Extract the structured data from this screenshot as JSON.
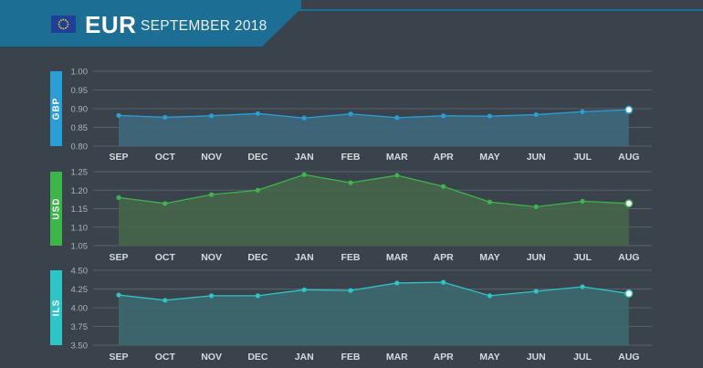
{
  "header": {
    "currency": "EUR",
    "period": "SEPTEMBER 2018",
    "flag_icon": "eu-flag-icon",
    "banner_color": "#1c6e94"
  },
  "chart_data": [
    {
      "type": "area",
      "label": "GBP",
      "color": "#2a9fd6",
      "fill": "#3f6a80",
      "categories": [
        "SEP",
        "OCT",
        "NOV",
        "DEC",
        "JAN",
        "FEB",
        "MAR",
        "APR",
        "MAY",
        "JUN",
        "JUL",
        "AUG"
      ],
      "values": [
        0.882,
        0.877,
        0.881,
        0.887,
        0.875,
        0.886,
        0.876,
        0.881,
        0.88,
        0.884,
        0.892,
        0.897
      ],
      "ylim": [
        0.8,
        1.0
      ],
      "yticks": [
        "1.00",
        "0.95",
        "0.90",
        "0.85",
        "0.80"
      ]
    },
    {
      "type": "area",
      "label": "USD",
      "color": "#3cb54a",
      "fill": "#46674a",
      "categories": [
        "SEP",
        "OCT",
        "NOV",
        "DEC",
        "JAN",
        "FEB",
        "MAR",
        "APR",
        "MAY",
        "JUN",
        "JUL",
        "AUG"
      ],
      "values": [
        1.18,
        1.164,
        1.188,
        1.2,
        1.242,
        1.22,
        1.24,
        1.21,
        1.168,
        1.155,
        1.17,
        1.164
      ],
      "ylim": [
        1.05,
        1.25
      ],
      "yticks": [
        "1.25",
        "1.20",
        "1.15",
        "1.10",
        "1.05"
      ]
    },
    {
      "type": "area",
      "label": "ILS",
      "color": "#2ec5c9",
      "fill": "#3c6b70",
      "categories": [
        "SEP",
        "OCT",
        "NOV",
        "DEC",
        "JAN",
        "FEB",
        "MAR",
        "APR",
        "MAY",
        "JUN",
        "JUL",
        "AUG"
      ],
      "values": [
        4.17,
        4.1,
        4.16,
        4.16,
        4.24,
        4.23,
        4.33,
        4.34,
        4.16,
        4.22,
        4.28,
        4.19
      ],
      "ylim": [
        3.5,
        4.5
      ],
      "yticks": [
        "4.50",
        "4.25",
        "4.00",
        "3.75",
        "3.50"
      ]
    }
  ]
}
